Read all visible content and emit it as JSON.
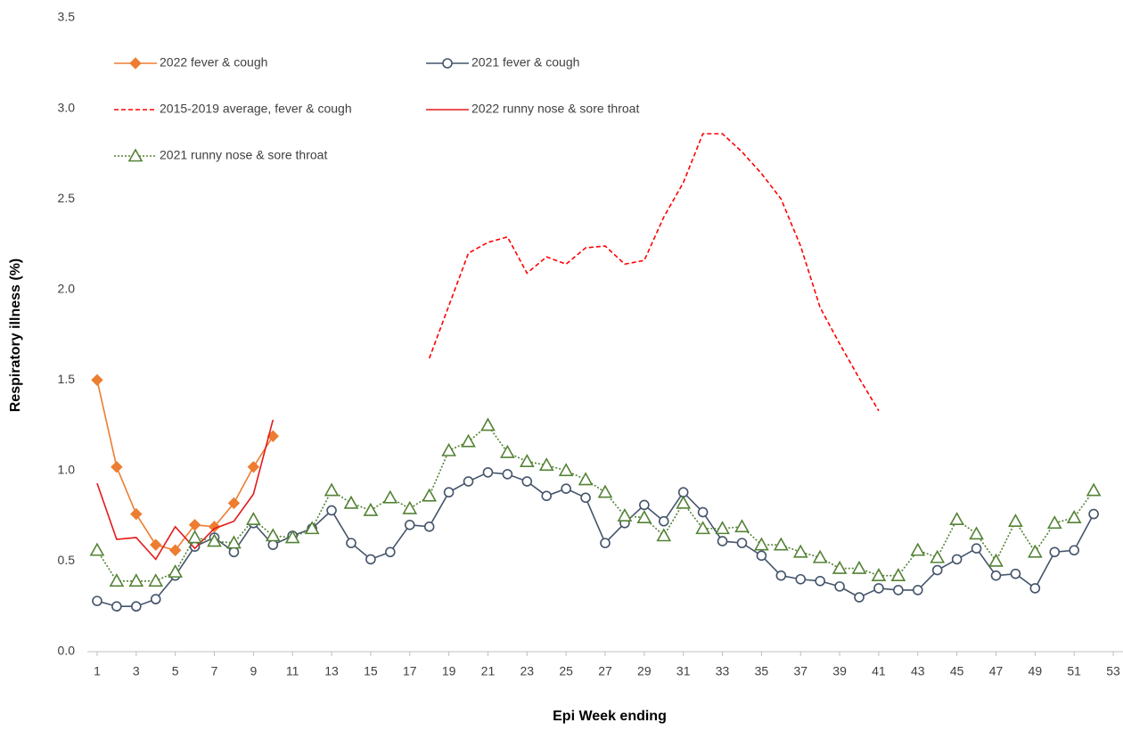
{
  "chart_data": {
    "type": "line",
    "y_label": "Respiratory illness (%)",
    "x_label": "Epi Week ending",
    "x": [
      1,
      2,
      3,
      4,
      5,
      6,
      7,
      8,
      9,
      10,
      11,
      12,
      13,
      14,
      15,
      16,
      17,
      18,
      19,
      20,
      21,
      22,
      23,
      24,
      25,
      26,
      27,
      28,
      29,
      30,
      31,
      32,
      33,
      34,
      35,
      36,
      37,
      38,
      39,
      40,
      41,
      42,
      43,
      44,
      45,
      46,
      47,
      48,
      49,
      50,
      51,
      52,
      53
    ],
    "xlim": [
      0.5,
      53.5
    ],
    "xticks": [
      1,
      3,
      5,
      7,
      9,
      11,
      13,
      15,
      17,
      19,
      21,
      23,
      25,
      27,
      29,
      31,
      33,
      35,
      37,
      39,
      41,
      43,
      45,
      47,
      49,
      51,
      53
    ],
    "ylim": [
      0,
      3.5
    ],
    "yticks": [
      {
        "value": 0,
        "label": "0.0"
      },
      0.5,
      {
        "value": 1,
        "label": "1.0"
      },
      1.5,
      {
        "value": 2,
        "label": "2.0"
      },
      2.5,
      {
        "value": 3,
        "label": "3.0"
      },
      3.5
    ],
    "grid": false,
    "series": [
      {
        "name": "2022 fever & cough",
        "color": "#ed7d31",
        "dash": "solid",
        "marker": "diamond",
        "values": [
          1.5,
          1.02,
          0.76,
          0.59,
          0.56,
          0.7,
          0.69,
          0.82,
          1.02,
          1.19,
          null,
          null,
          null,
          null,
          null,
          null,
          null,
          null,
          null,
          null,
          null,
          null,
          null,
          null,
          null,
          null,
          null,
          null,
          null,
          null,
          null,
          null,
          null,
          null,
          null,
          null,
          null,
          null,
          null,
          null,
          null,
          null,
          null,
          null,
          null,
          null,
          null,
          null,
          null,
          null,
          null,
          null,
          null
        ]
      },
      {
        "name": "2021 fever & cough",
        "color": "#44546a",
        "dash": "solid",
        "marker": "circle",
        "values": [
          0.28,
          0.25,
          0.25,
          0.29,
          0.42,
          0.58,
          0.63,
          0.55,
          0.71,
          0.59,
          0.64,
          0.68,
          0.78,
          0.6,
          0.51,
          0.55,
          0.7,
          0.69,
          0.88,
          0.94,
          0.99,
          0.98,
          0.94,
          0.86,
          0.9,
          0.85,
          0.6,
          0.71,
          0.81,
          0.72,
          0.88,
          0.77,
          0.61,
          0.6,
          0.53,
          0.42,
          0.4,
          0.39,
          0.36,
          0.3,
          0.35,
          0.34,
          0.34,
          0.45,
          0.51,
          0.57,
          0.42,
          0.43,
          0.35,
          0.55,
          0.56,
          0.76,
          null
        ]
      },
      {
        "name": "2015-2019 average, fever & cough",
        "color": "#ff0000",
        "dash": "dashed",
        "marker": "none",
        "values": [
          null,
          null,
          null,
          null,
          null,
          null,
          null,
          null,
          null,
          null,
          null,
          null,
          null,
          null,
          null,
          null,
          null,
          1.62,
          1.91,
          2.2,
          2.26,
          2.29,
          2.09,
          2.18,
          2.14,
          2.23,
          2.24,
          2.14,
          2.16,
          2.4,
          2.59,
          2.86,
          2.86,
          2.76,
          2.64,
          2.5,
          2.24,
          1.9,
          1.7,
          1.51,
          1.33,
          null,
          null,
          null,
          null,
          null,
          null,
          null,
          null,
          null,
          null,
          null,
          null
        ]
      },
      {
        "name": "2022 runny nose & sore throat",
        "color": "#e31a1c",
        "dash": "solid",
        "marker": "none",
        "values": [
          0.93,
          0.62,
          0.63,
          0.51,
          0.69,
          0.57,
          0.68,
          0.72,
          0.87,
          1.28,
          null,
          null,
          null,
          null,
          null,
          null,
          null,
          null,
          null,
          null,
          null,
          null,
          null,
          null,
          null,
          null,
          null,
          null,
          null,
          null,
          null,
          null,
          null,
          null,
          null,
          null,
          null,
          null,
          null,
          null,
          null,
          null,
          null,
          null,
          null,
          null,
          null,
          null,
          null,
          null,
          null,
          null,
          null
        ]
      },
      {
        "name": "2021 runny nose & sore throat",
        "color": "#548235",
        "dash": "dotted",
        "marker": "triangle",
        "values": [
          0.56,
          0.39,
          0.39,
          0.39,
          0.44,
          0.63,
          0.61,
          0.6,
          0.73,
          0.64,
          0.63,
          0.68,
          0.89,
          0.82,
          0.78,
          0.85,
          0.79,
          0.86,
          1.11,
          1.16,
          1.25,
          1.1,
          1.05,
          1.03,
          1.0,
          0.95,
          0.88,
          0.75,
          0.74,
          0.64,
          0.82,
          0.68,
          0.68,
          0.69,
          0.59,
          0.59,
          0.55,
          0.52,
          0.46,
          0.46,
          0.42,
          0.42,
          0.56,
          0.52,
          0.73,
          0.65,
          0.5,
          0.72,
          0.55,
          0.71,
          0.74,
          0.89,
          null
        ]
      }
    ]
  }
}
